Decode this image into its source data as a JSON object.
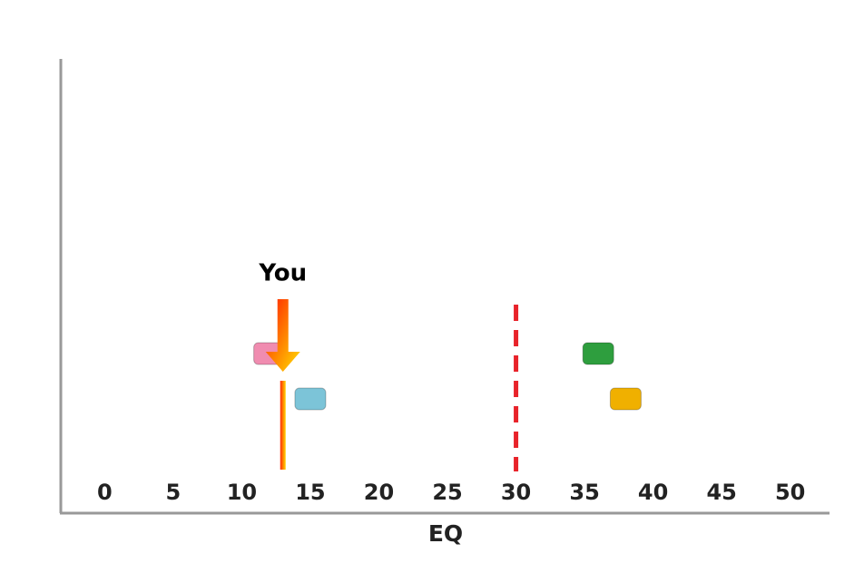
{
  "chart_data": {
    "type": "scatter",
    "xlabel": "EQ",
    "xlim": [
      -3.2,
      52.8
    ],
    "xticks": [
      0,
      5,
      10,
      15,
      20,
      25,
      30,
      35,
      40,
      45,
      50
    ],
    "series": [
      {
        "color": "#f08cb0",
        "x": [
          12
        ]
      },
      {
        "color": "#7cc4d8",
        "x": [
          15
        ]
      },
      {
        "color": "#2e9e3e",
        "x": [
          36
        ]
      },
      {
        "color": "#f0b000",
        "x": [
          38
        ]
      }
    ],
    "you": {
      "label": "You",
      "x": 13
    },
    "threshold": {
      "x": 30,
      "color": "#e8232a"
    }
  }
}
